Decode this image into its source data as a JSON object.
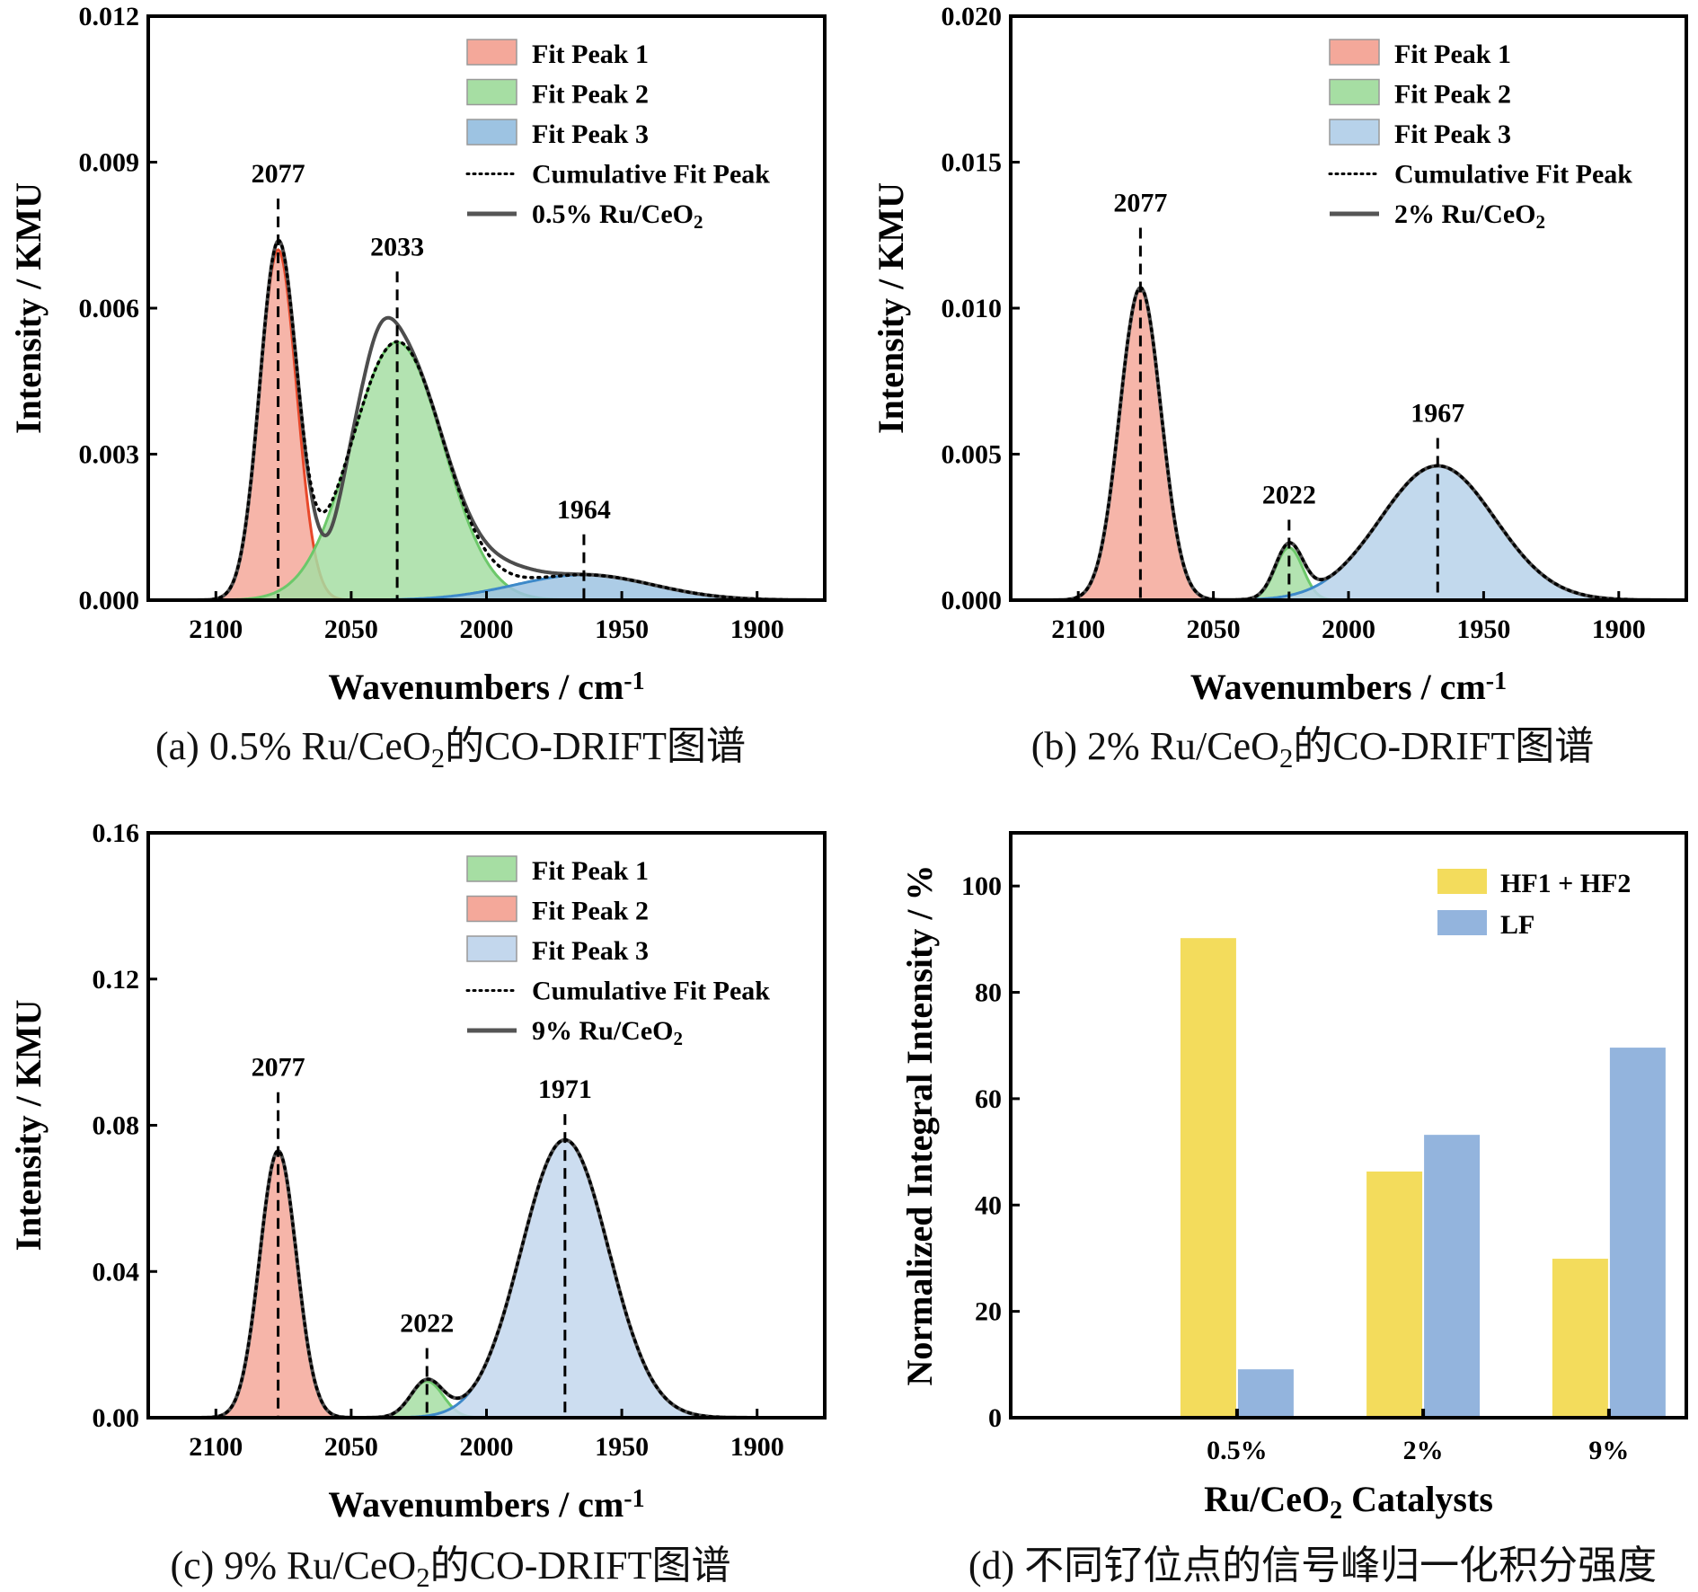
{
  "chart_data": [
    {
      "id": "a",
      "type": "area",
      "caption": "(a) 0.5% Ru/CeO₂的CO-DRIFT图谱",
      "xlabel": "Wavenumbers / cm⁻¹",
      "ylabel": "Intensity / KMU",
      "xlim": [
        2125,
        1875
      ],
      "ylim": [
        0,
        0.012
      ],
      "xticks": [
        2100,
        2050,
        2000,
        1950,
        1900
      ],
      "yticks": [
        "0.000",
        "0.003",
        "0.006",
        "0.009",
        "0.012"
      ],
      "legend_position": "top-right",
      "legend": [
        "Fit Peak 1",
        "Fit Peak 2",
        "Fit Peak 3",
        "Cumulative Fit Peak",
        "0.5% Ru/CeO₂"
      ],
      "peaks": [
        {
          "name": "Fit Peak 1",
          "center": 2077,
          "height": 0.0072,
          "fwhm": 16,
          "color": "#f4a89a",
          "edge": "#e8482a"
        },
        {
          "name": "Fit Peak 2",
          "center": 2033,
          "height": 0.0053,
          "fwhm": 40,
          "color": "#a6dea3",
          "edge": "#6cc86a"
        },
        {
          "name": "Fit Peak 3",
          "center": 1964,
          "height": 0.00052,
          "fwhm": 60,
          "color": "#9dc3e2",
          "edge": "#3d89c9"
        }
      ],
      "annotations": [
        {
          "label": "2077",
          "x": 2077,
          "y": 0.0084
        },
        {
          "label": "2033",
          "x": 2033,
          "y": 0.0069
        },
        {
          "label": "1964",
          "x": 1964,
          "y": 0.0015
        }
      ]
    },
    {
      "id": "b",
      "type": "area",
      "caption": "(b) 2% Ru/CeO₂的CO-DRIFT图谱",
      "xlabel": "Wavenumbers / cm⁻¹",
      "ylabel": "Intensity / KMU",
      "xlim": [
        2125,
        1875
      ],
      "ylim": [
        0,
        0.02
      ],
      "xticks": [
        2100,
        2050,
        2000,
        1950,
        1900
      ],
      "yticks": [
        "0.000",
        "0.005",
        "0.010",
        "0.015",
        "0.020"
      ],
      "legend_position": "top-right",
      "legend": [
        "Fit Peak 1",
        "Fit Peak 2",
        "Fit Peak 3",
        "Cumulative Fit Peak",
        "2% Ru/CeO₂"
      ],
      "peaks": [
        {
          "name": "Fit Peak 1",
          "center": 2077,
          "height": 0.0107,
          "fwhm": 18,
          "color": "#f4a89a",
          "edge": "#e8482a"
        },
        {
          "name": "Fit Peak 2",
          "center": 2022,
          "height": 0.0018,
          "fwhm": 12,
          "color": "#a6dea3",
          "edge": "#6cc86a"
        },
        {
          "name": "Fit Peak 3",
          "center": 1967,
          "height": 0.0046,
          "fwhm": 50,
          "color": "#b7d2ea",
          "edge": "#3d89c9"
        }
      ],
      "annotations": [
        {
          "label": "2077",
          "x": 2077,
          "y": 0.013
        },
        {
          "label": "2022",
          "x": 2022,
          "y": 0.003
        },
        {
          "label": "1967",
          "x": 1967,
          "y": 0.0058
        }
      ]
    },
    {
      "id": "c",
      "type": "area",
      "caption": "(c) 9% Ru/CeO₂的CO-DRIFT图谱",
      "xlabel": "Wavenumbers / cm⁻¹",
      "ylabel": "Intensity / KMU",
      "xlim": [
        2125,
        1875
      ],
      "ylim": [
        0,
        0.16
      ],
      "xticks": [
        2100,
        2050,
        2000,
        1950,
        1900
      ],
      "yticks": [
        "0.00",
        "0.04",
        "0.08",
        "0.12",
        "0.16"
      ],
      "legend_position": "top-right",
      "legend": [
        "Fit Peak 1",
        "Fit Peak 2",
        "Fit Peak 3",
        "Cumulative Fit Peak",
        "9% Ru/CeO₂"
      ],
      "peaks": [
        {
          "name": "Fit Peak 2",
          "center": 2077,
          "height": 0.073,
          "fwhm": 16,
          "color": "#f4a89a",
          "edge": "#e8482a"
        },
        {
          "name": "Fit Peak 1",
          "center": 2022,
          "height": 0.01,
          "fwhm": 14,
          "color": "#a6dea3",
          "edge": "#6cc86a"
        },
        {
          "name": "Fit Peak 3",
          "center": 1971,
          "height": 0.076,
          "fwhm": 38,
          "color": "#c3d7ed",
          "edge": "#3d89c9"
        }
      ],
      "legend_colors": [
        "#a6dea3",
        "#f4a89a",
        "#c3d7ed"
      ],
      "annotations": [
        {
          "label": "2077",
          "x": 2077,
          "y": 0.091
        },
        {
          "label": "2022",
          "x": 2022,
          "y": 0.021
        },
        {
          "label": "1971",
          "x": 1971,
          "y": 0.085
        }
      ]
    },
    {
      "id": "d",
      "type": "bar",
      "caption": "(d) 不同钌位点的信号峰归一化积分强度",
      "xlabel": "Ru/CeO₂ Catalysts",
      "ylabel": "Normalized Integral Intensity / %",
      "categories": [
        "0.5%",
        "2%",
        "9%"
      ],
      "ylim": [
        0,
        110
      ],
      "yticks": [
        "0",
        "20",
        "40",
        "60",
        "80",
        "100"
      ],
      "legend_position": "top-right",
      "series": [
        {
          "name": "HF1 + HF2",
          "values": [
            90.2,
            46.3,
            29.9
          ],
          "color": "#f3dc5c"
        },
        {
          "name": "LF",
          "values": [
            9.1,
            53.2,
            69.6
          ],
          "color": "#93b4dd"
        }
      ]
    }
  ]
}
